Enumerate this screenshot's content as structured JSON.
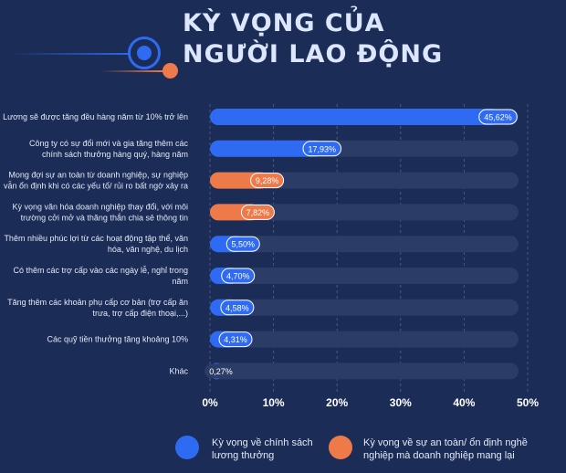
{
  "header": {
    "title_line1": "KỲ VỌNG CỦA",
    "title_line2": "NGƯỜI LAO ĐỘNG"
  },
  "colors": {
    "background": "#1b2c57",
    "track": "#2b3c66",
    "salary_expectation": "#2f6bf2",
    "stability_expectation": "#ee7a4a",
    "text": "#e3e9f7"
  },
  "chart_data": {
    "type": "bar",
    "orientation": "horizontal",
    "xlim": [
      0,
      50
    ],
    "xticks": [
      "0%",
      "10%",
      "20%",
      "30%",
      "40%",
      "50%"
    ],
    "grid": true,
    "categories": [
      [
        "Lương sẽ được tăng đều hàng năm từ 10% trở lên"
      ],
      [
        "Công ty có sự đổi mới và gia tăng thêm các",
        "chính sách thưởng hàng quý, hàng năm"
      ],
      [
        "Mong đợi sự an toàn từ doanh nghiệp, sự nghiệp",
        "vẫn ổn định khi có các yếu tố/ rủi ro bất ngờ xảy ra"
      ],
      [
        "Kỳ vọng văn hóa doanh nghiệp thay đổi, với môi",
        "trường cởi mở và thăng thắn chia sẻ thông tin"
      ],
      [
        "Thêm nhiều phúc lợi từ các hoạt động tập thể, văn",
        "hóa, văn nghệ, du lịch"
      ],
      [
        "Có thêm các trợ cấp vào các ngày lễ, nghỉ trong",
        "năm"
      ],
      [
        "Tăng thêm các khoản phụ cấp cơ bản (trợ cấp ăn",
        "trưa, trợ cấp điện thoại,...)"
      ],
      [
        "Các quỹ tiền thưởng tăng khoảng 10%"
      ],
      [
        "Khác"
      ]
    ],
    "values": [
      45.62,
      17.93,
      9.28,
      7.82,
      5.5,
      4.7,
      4.58,
      4.31,
      0.27
    ],
    "value_labels": [
      "45,62%",
      "17,93%",
      "9,28%",
      "7,82%",
      "5,50%",
      "4,70%",
      "4,58%",
      "4,31%",
      "0,27%"
    ],
    "group": [
      "salary",
      "salary",
      "stability",
      "stability",
      "salary",
      "salary",
      "salary",
      "salary",
      "salary"
    ],
    "legend": {
      "placement": "bottom",
      "entries": [
        {
          "key": "salary",
          "label_lines": [
            "Kỳ vọng về chính sách",
            "lương thưởng"
          ],
          "color": "#2f6bf2"
        },
        {
          "key": "stability",
          "label_lines": [
            "Kỳ vọng về sự an toàn/ ổn định nghề",
            "nghiệp mà doanh nghiệp mang lại"
          ],
          "color": "#ee7a4a"
        }
      ]
    }
  }
}
